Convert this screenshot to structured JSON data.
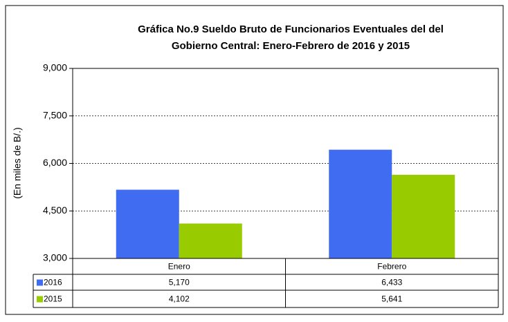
{
  "chart_data": {
    "type": "bar",
    "title": [
      "Gráfica No.9 Sueldo Bruto de Funcionarios Eventuales del del",
      "Gobierno Central: Enero-Febrero de 2016 y 2015"
    ],
    "y_label": "(En miles de B/.)",
    "categories": [
      "Enero",
      "Febrero"
    ],
    "series": [
      {
        "name": "2016",
        "color": "#3f6cf0",
        "values": [
          5170,
          6433
        ],
        "value_labels": [
          "5,170",
          "6,433"
        ]
      },
      {
        "name": "2015",
        "color": "#99cc00",
        "values": [
          4102,
          5641
        ],
        "value_labels": [
          "4,102",
          "5,641"
        ]
      }
    ],
    "ylim": [
      3000,
      9000
    ],
    "yticks": [
      {
        "value": 3000,
        "label": "3,000"
      },
      {
        "value": 4500,
        "label": "4,500"
      },
      {
        "value": 6000,
        "label": "6,000"
      },
      {
        "value": 7500,
        "label": "7,500"
      },
      {
        "value": 9000,
        "label": "9,000"
      }
    ],
    "grid": true
  }
}
